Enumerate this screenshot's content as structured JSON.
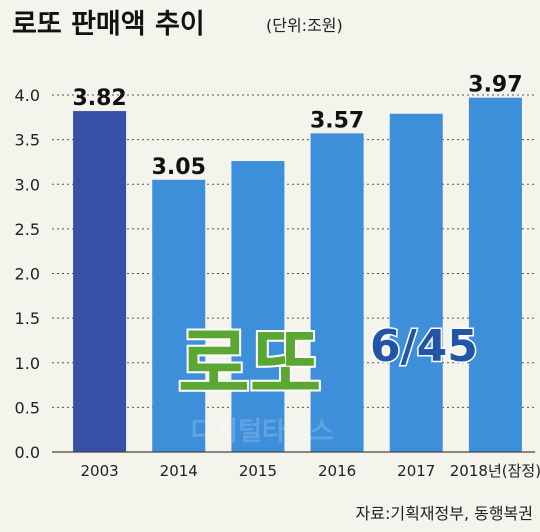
{
  "chart_data": {
    "type": "bar",
    "title": "로또 판매액 추이",
    "unit": "(단위:조원)",
    "categories": [
      "2003",
      "2014",
      "2015",
      "2016",
      "2017",
      "2018년(잠정)"
    ],
    "values": [
      3.82,
      3.05,
      3.26,
      3.57,
      3.79,
      3.97
    ],
    "data_labels": [
      "3.82",
      "3.05",
      "",
      "3.57",
      "",
      "3.97"
    ],
    "ylim": [
      0,
      4.0
    ],
    "yticks": [
      "0.0",
      "0.5",
      "1.0",
      "1.5",
      "2.0",
      "2.5",
      "3.0",
      "3.5",
      "4.0"
    ],
    "grid": true,
    "source": "자료:기획재정부, 동행복권"
  },
  "logo": {
    "text": "로또",
    "numbers": "6/45"
  },
  "watermark": "디지털타임스",
  "colors": {
    "background": "#f4f3ec",
    "bar_first": "#3650a8",
    "bar": "#3c8fd8",
    "logo_green": "#5aa832",
    "logo_blue": "#2255a8",
    "grid": "#555555"
  }
}
